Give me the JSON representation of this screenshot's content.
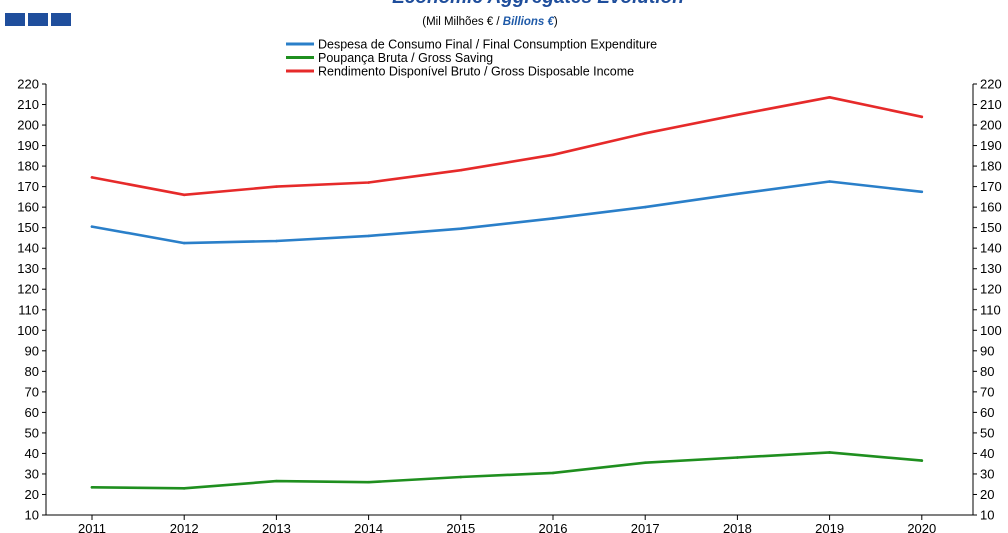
{
  "title": "Economic Aggregates Evolution",
  "subtitle_prefix": "(Mil Milhões € / ",
  "subtitle_accent": "Billions €",
  "subtitle_suffix": ")",
  "colors": {
    "title": "#1f4e9c",
    "accent": "#1f5aa8",
    "logo": "#1f4e9c",
    "axis": "#000000"
  },
  "chart_data": {
    "type": "line",
    "title": "Economic Aggregates Evolution",
    "x": [
      "2011",
      "2012",
      "2013",
      "2014",
      "2015",
      "2016",
      "2017",
      "2018",
      "2019",
      "2020"
    ],
    "ylim": [
      10,
      220
    ],
    "ytick_step": 10,
    "grid": false,
    "legend_position": "top-center",
    "series": [
      {
        "name": "Despesa de Consumo Final / Final Consumption Expenditure",
        "color": "#2a7fc9",
        "values": [
          150.5,
          142.5,
          143.5,
          146,
          149.5,
          154.5,
          160,
          166.5,
          172.5,
          167.5
        ]
      },
      {
        "name": "Poupança Bruta / Gross Saving",
        "color": "#1f8f1f",
        "values": [
          23.5,
          23,
          26.5,
          26,
          28.5,
          30.5,
          35.5,
          38,
          40.5,
          36.5
        ]
      },
      {
        "name": "Rendimento Disponível Bruto / Gross Disposable Income",
        "color": "#e62a2a",
        "values": [
          174.5,
          166,
          170,
          172,
          178,
          185.5,
          196,
          205,
          213.5,
          204
        ]
      }
    ]
  }
}
